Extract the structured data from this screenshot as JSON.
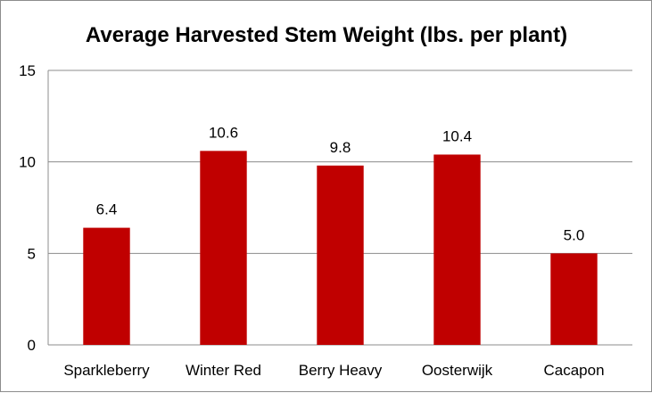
{
  "chart_data": {
    "type": "bar",
    "title": "Average Harvested Stem Weight (lbs. per plant)",
    "categories": [
      "Sparkleberry",
      "Winter Red",
      "Berry Heavy",
      "Oosterwijk",
      "Cacapon"
    ],
    "values": [
      6.4,
      10.6,
      9.8,
      10.4,
      5.0
    ],
    "value_labels": [
      "6.4",
      "10.6",
      "9.8",
      "10.4",
      "5.0"
    ],
    "xlabel": "",
    "ylabel": "",
    "ylim": [
      0,
      15
    ],
    "yticks": [
      "0",
      "5",
      "10",
      "15"
    ],
    "grid": true,
    "legend": "none",
    "bar_color": "#c00000"
  }
}
